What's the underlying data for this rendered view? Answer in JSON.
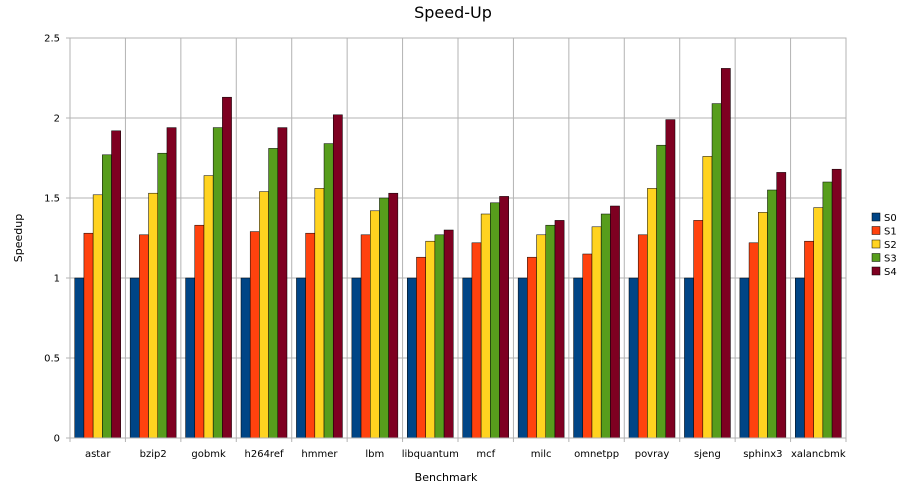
{
  "chart_data": {
    "type": "bar",
    "title": "Speed-Up",
    "xlabel": "Benchmark",
    "ylabel": "Speedup",
    "ylim": [
      0,
      2.5
    ],
    "yticks": [
      0,
      0.5,
      1,
      1.5,
      2,
      2.5
    ],
    "ytick_labels": [
      "0",
      "0.5",
      "1",
      "1.5",
      "2",
      "2.5"
    ],
    "grid": true,
    "legend_position": "right",
    "categories": [
      "astar",
      "bzip2",
      "gobmk",
      "h264ref",
      "hmmer",
      "lbm",
      "libquantum",
      "mcf",
      "milc",
      "omnetpp",
      "povray",
      "sjeng",
      "sphinx3",
      "xalancbmk"
    ],
    "series": [
      {
        "name": "S0",
        "color": "#004586",
        "values": [
          1,
          1,
          1,
          1,
          1,
          1,
          1,
          1,
          1,
          1,
          1,
          1,
          1,
          1
        ]
      },
      {
        "name": "S1",
        "color": "#ff420e",
        "values": [
          1.28,
          1.27,
          1.33,
          1.29,
          1.28,
          1.27,
          1.13,
          1.22,
          1.13,
          1.15,
          1.27,
          1.36,
          1.22,
          1.23
        ]
      },
      {
        "name": "S2",
        "color": "#ffd320",
        "values": [
          1.52,
          1.53,
          1.64,
          1.54,
          1.56,
          1.42,
          1.23,
          1.4,
          1.27,
          1.32,
          1.56,
          1.76,
          1.41,
          1.44
        ]
      },
      {
        "name": "S3",
        "color": "#579d1c",
        "values": [
          1.77,
          1.78,
          1.94,
          1.81,
          1.84,
          1.5,
          1.27,
          1.47,
          1.33,
          1.4,
          1.83,
          2.09,
          1.55,
          1.6
        ]
      },
      {
        "name": "S4",
        "color": "#7e0021",
        "values": [
          1.92,
          1.94,
          2.13,
          1.94,
          2.02,
          1.53,
          1.3,
          1.51,
          1.36,
          1.45,
          1.99,
          2.31,
          1.66,
          1.68
        ]
      }
    ]
  }
}
